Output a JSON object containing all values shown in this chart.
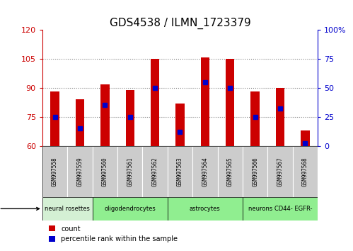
{
  "title": "GDS4538 / ILMN_1723379",
  "samples": [
    "GSM997558",
    "GSM997559",
    "GSM997560",
    "GSM997561",
    "GSM997562",
    "GSM997563",
    "GSM997564",
    "GSM997565",
    "GSM997566",
    "GSM997567",
    "GSM997568"
  ],
  "counts": [
    88,
    84,
    92,
    89,
    105,
    82,
    106,
    105,
    88,
    90,
    68
  ],
  "percentile_ranks": [
    25,
    15,
    35,
    25,
    50,
    12,
    55,
    50,
    25,
    32,
    2
  ],
  "ylim_left": [
    60,
    120
  ],
  "ylim_right": [
    0,
    100
  ],
  "yticks_left": [
    60,
    75,
    90,
    105,
    120
  ],
  "yticks_right": [
    0,
    25,
    50,
    75,
    100
  ],
  "cell_type_data": [
    {
      "label": "neural rosettes",
      "start": 0,
      "end": 1,
      "color": "#d4f0d4"
    },
    {
      "label": "oligodendrocytes",
      "start": 2,
      "end": 4,
      "color": "#90ee90"
    },
    {
      "label": "astrocytes",
      "start": 5,
      "end": 7,
      "color": "#90ee90"
    },
    {
      "label": "neurons CD44- EGFR-",
      "start": 8,
      "end": 10,
      "color": "#90ee90"
    }
  ],
  "bar_color": "#cc0000",
  "marker_color": "#0000cc",
  "bar_bottom": 60,
  "right_axis_color": "#0000cc",
  "left_axis_color": "#cc0000",
  "grid_color": "#808080",
  "bg_color": "#ffffff",
  "sample_bg_color": "#cccccc",
  "bar_width": 0.35
}
